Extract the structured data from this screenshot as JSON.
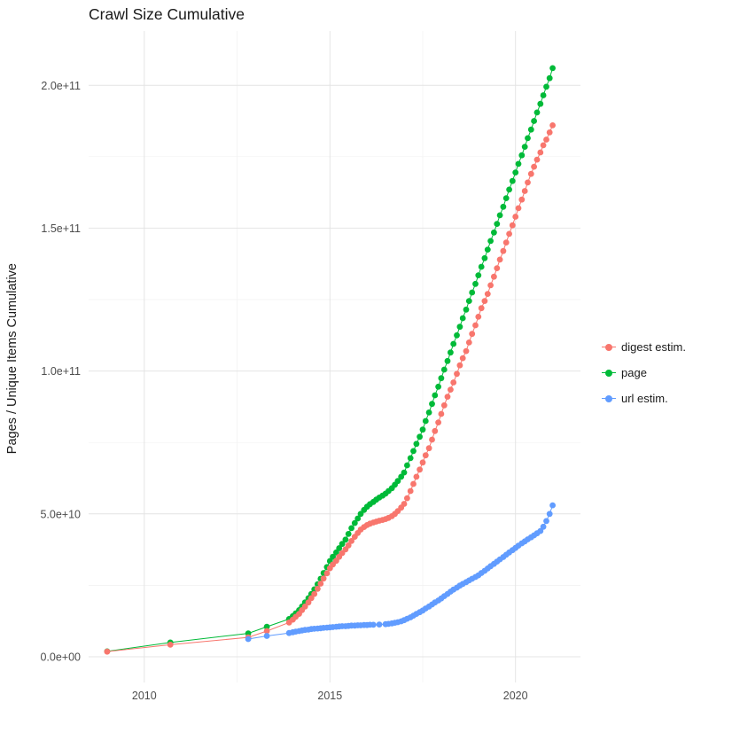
{
  "chart_data": {
    "type": "scatter",
    "title": "Crawl Size Cumulative",
    "xlabel": "",
    "ylabel": "Pages / Unique Items Cumulative",
    "value_unit": "point values in billions (1e9) of pages / unique items",
    "grid": true,
    "x_axis": {
      "domain": [
        2008.5,
        2021.75
      ],
      "ticks": [
        {
          "value": 2010,
          "label": "2010"
        },
        {
          "value": 2015,
          "label": "2015"
        },
        {
          "value": 2020,
          "label": "2020"
        }
      ],
      "minor": [
        2012.5,
        2017.5
      ]
    },
    "y_axis": {
      "domain_e9": [
        -9,
        219
      ],
      "ticks": [
        {
          "value_e9": 0,
          "label": "0.0e+00"
        },
        {
          "value_e9": 50,
          "label": "5.0e+10"
        },
        {
          "value_e9": 100,
          "label": "1.0e+11"
        },
        {
          "value_e9": 150,
          "label": "1.5e+11"
        },
        {
          "value_e9": 200,
          "label": "2.0e+11"
        }
      ],
      "minor_e9": [
        25,
        75,
        125,
        175
      ]
    },
    "legend": {
      "position": "right",
      "entries": [
        "digest estim.",
        "page",
        "url estim."
      ]
    },
    "style": {
      "background": "#FFFFFF",
      "major_grid_color": "#E4E4E4",
      "minor_grid_color": "#F1F1F1",
      "tick_label_color": "#4D4D4D",
      "text_color": "#1A1A1A"
    },
    "series": [
      {
        "id": "digest",
        "name": "digest estim.",
        "color": "#F8766D",
        "points": [
          [
            2009.0,
            1.8
          ],
          [
            2010.7,
            4.2
          ],
          [
            2012.8,
            6.8
          ],
          [
            2013.3,
            9.0
          ],
          [
            2013.9,
            12.0
          ],
          [
            2014.0,
            13.0
          ],
          [
            2014.08,
            14.0
          ],
          [
            2014.17,
            15.0
          ],
          [
            2014.25,
            16.3
          ],
          [
            2014.33,
            17.6
          ],
          [
            2014.42,
            19.0
          ],
          [
            2014.5,
            20.5
          ],
          [
            2014.58,
            22.0
          ],
          [
            2014.67,
            23.8
          ],
          [
            2014.75,
            25.6
          ],
          [
            2014.83,
            27.4
          ],
          [
            2014.92,
            29.2
          ],
          [
            2015.0,
            31.0
          ],
          [
            2015.08,
            32.3
          ],
          [
            2015.17,
            33.6
          ],
          [
            2015.25,
            35.0
          ],
          [
            2015.33,
            36.3
          ],
          [
            2015.42,
            37.6
          ],
          [
            2015.5,
            39.0
          ],
          [
            2015.58,
            40.5
          ],
          [
            2015.67,
            42.0
          ],
          [
            2015.75,
            43.3
          ],
          [
            2015.83,
            44.5
          ],
          [
            2015.92,
            45.4
          ],
          [
            2016.0,
            46.1
          ],
          [
            2016.08,
            46.6
          ],
          [
            2016.17,
            47.0
          ],
          [
            2016.25,
            47.3
          ],
          [
            2016.33,
            47.6
          ],
          [
            2016.42,
            47.9
          ],
          [
            2016.5,
            48.2
          ],
          [
            2016.58,
            48.6
          ],
          [
            2016.67,
            49.2
          ],
          [
            2016.75,
            50.0
          ],
          [
            2016.83,
            51.0
          ],
          [
            2016.92,
            52.2
          ],
          [
            2017.0,
            53.5
          ],
          [
            2017.08,
            55.5
          ],
          [
            2017.17,
            58.0
          ],
          [
            2017.25,
            60.5
          ],
          [
            2017.33,
            63.0
          ],
          [
            2017.42,
            65.5
          ],
          [
            2017.5,
            68.0
          ],
          [
            2017.58,
            70.5
          ],
          [
            2017.67,
            73.0
          ],
          [
            2017.75,
            76.0
          ],
          [
            2017.83,
            79.0
          ],
          [
            2017.92,
            82.0
          ],
          [
            2018.0,
            85.0
          ],
          [
            2018.08,
            88.0
          ],
          [
            2018.17,
            91.0
          ],
          [
            2018.25,
            93.5
          ],
          [
            2018.33,
            96.0
          ],
          [
            2018.42,
            99.0
          ],
          [
            2018.5,
            102.0
          ],
          [
            2018.58,
            104.5
          ],
          [
            2018.67,
            107.0
          ],
          [
            2018.75,
            110.0
          ],
          [
            2018.83,
            113.0
          ],
          [
            2018.92,
            116.0
          ],
          [
            2019.0,
            119.0
          ],
          [
            2019.08,
            122.0
          ],
          [
            2019.17,
            124.5
          ],
          [
            2019.25,
            127.0
          ],
          [
            2019.33,
            130.0
          ],
          [
            2019.42,
            133.0
          ],
          [
            2019.5,
            136.0
          ],
          [
            2019.58,
            139.0
          ],
          [
            2019.67,
            142.0
          ],
          [
            2019.75,
            145.0
          ],
          [
            2019.83,
            148.0
          ],
          [
            2019.92,
            151.0
          ],
          [
            2020.0,
            154.0
          ],
          [
            2020.08,
            157.0
          ],
          [
            2020.17,
            160.0
          ],
          [
            2020.25,
            163.0
          ],
          [
            2020.33,
            166.0
          ],
          [
            2020.42,
            169.0
          ],
          [
            2020.5,
            171.5
          ],
          [
            2020.58,
            174.0
          ],
          [
            2020.67,
            176.5
          ],
          [
            2020.75,
            179.0
          ],
          [
            2020.83,
            181.0
          ],
          [
            2020.92,
            183.5
          ],
          [
            2021.0,
            186.0
          ]
        ]
      },
      {
        "id": "page",
        "name": "page",
        "color": "#00BA38",
        "points": [
          [
            2009.0,
            1.9
          ],
          [
            2010.7,
            5.0
          ],
          [
            2012.8,
            8.2
          ],
          [
            2013.3,
            10.5
          ],
          [
            2013.9,
            13.2
          ],
          [
            2014.0,
            14.2
          ],
          [
            2014.08,
            15.2
          ],
          [
            2014.17,
            16.3
          ],
          [
            2014.25,
            17.6
          ],
          [
            2014.33,
            19.0
          ],
          [
            2014.42,
            20.5
          ],
          [
            2014.5,
            22.0
          ],
          [
            2014.58,
            23.6
          ],
          [
            2014.67,
            25.4
          ],
          [
            2014.75,
            27.3
          ],
          [
            2014.83,
            29.3
          ],
          [
            2014.92,
            31.4
          ],
          [
            2015.0,
            33.5
          ],
          [
            2015.08,
            35.0
          ],
          [
            2015.17,
            36.5
          ],
          [
            2015.25,
            38.0
          ],
          [
            2015.33,
            39.5
          ],
          [
            2015.42,
            41.0
          ],
          [
            2015.5,
            43.0
          ],
          [
            2015.58,
            45.0
          ],
          [
            2015.67,
            46.8
          ],
          [
            2015.75,
            48.4
          ],
          [
            2015.83,
            50.0
          ],
          [
            2015.92,
            51.4
          ],
          [
            2016.0,
            52.5
          ],
          [
            2016.08,
            53.4
          ],
          [
            2016.17,
            54.2
          ],
          [
            2016.25,
            55.0
          ],
          [
            2016.33,
            55.7
          ],
          [
            2016.42,
            56.4
          ],
          [
            2016.5,
            57.1
          ],
          [
            2016.58,
            58.0
          ],
          [
            2016.67,
            59.0
          ],
          [
            2016.75,
            60.2
          ],
          [
            2016.83,
            61.5
          ],
          [
            2016.92,
            63.0
          ],
          [
            2017.0,
            64.5
          ],
          [
            2017.08,
            67.0
          ],
          [
            2017.17,
            69.5
          ],
          [
            2017.25,
            72.0
          ],
          [
            2017.33,
            74.5
          ],
          [
            2017.42,
            77.0
          ],
          [
            2017.5,
            79.5
          ],
          [
            2017.58,
            82.5
          ],
          [
            2017.67,
            85.5
          ],
          [
            2017.75,
            88.5
          ],
          [
            2017.83,
            91.5
          ],
          [
            2017.92,
            94.5
          ],
          [
            2018.0,
            97.5
          ],
          [
            2018.08,
            100.5
          ],
          [
            2018.17,
            103.5
          ],
          [
            2018.25,
            106.5
          ],
          [
            2018.33,
            109.5
          ],
          [
            2018.42,
            112.5
          ],
          [
            2018.5,
            115.5
          ],
          [
            2018.58,
            118.5
          ],
          [
            2018.67,
            121.5
          ],
          [
            2018.75,
            124.5
          ],
          [
            2018.83,
            127.5
          ],
          [
            2018.92,
            130.5
          ],
          [
            2019.0,
            133.5
          ],
          [
            2019.08,
            136.5
          ],
          [
            2019.17,
            139.5
          ],
          [
            2019.25,
            142.5
          ],
          [
            2019.33,
            145.5
          ],
          [
            2019.42,
            148.5
          ],
          [
            2019.5,
            151.5
          ],
          [
            2019.58,
            154.5
          ],
          [
            2019.67,
            157.5
          ],
          [
            2019.75,
            160.5
          ],
          [
            2019.83,
            163.5
          ],
          [
            2019.92,
            166.5
          ],
          [
            2020.0,
            169.5
          ],
          [
            2020.08,
            172.5
          ],
          [
            2020.17,
            175.5
          ],
          [
            2020.25,
            178.5
          ],
          [
            2020.33,
            181.5
          ],
          [
            2020.42,
            184.5
          ],
          [
            2020.5,
            187.5
          ],
          [
            2020.58,
            190.5
          ],
          [
            2020.67,
            193.5
          ],
          [
            2020.75,
            196.5
          ],
          [
            2020.83,
            199.5
          ],
          [
            2020.92,
            202.5
          ],
          [
            2021.0,
            206.0
          ]
        ]
      },
      {
        "id": "url",
        "name": "url estim.",
        "color": "#619CFF",
        "points": [
          [
            2012.8,
            6.2
          ],
          [
            2013.3,
            7.3
          ],
          [
            2013.9,
            8.3
          ],
          [
            2014.0,
            8.6
          ],
          [
            2014.08,
            8.8
          ],
          [
            2014.17,
            9.0
          ],
          [
            2014.25,
            9.2
          ],
          [
            2014.33,
            9.4
          ],
          [
            2014.42,
            9.5
          ],
          [
            2014.5,
            9.7
          ],
          [
            2014.58,
            9.8
          ],
          [
            2014.67,
            9.9
          ],
          [
            2014.75,
            10.0
          ],
          [
            2014.83,
            10.1
          ],
          [
            2014.92,
            10.2
          ],
          [
            2015.0,
            10.3
          ],
          [
            2015.08,
            10.4
          ],
          [
            2015.17,
            10.5
          ],
          [
            2015.25,
            10.6
          ],
          [
            2015.33,
            10.7
          ],
          [
            2015.42,
            10.7
          ],
          [
            2015.5,
            10.8
          ],
          [
            2015.58,
            10.9
          ],
          [
            2015.67,
            10.9
          ],
          [
            2015.75,
            11.0
          ],
          [
            2015.83,
            11.0
          ],
          [
            2015.92,
            11.1
          ],
          [
            2016.0,
            11.1
          ],
          [
            2016.08,
            11.2
          ],
          [
            2016.17,
            11.2
          ],
          [
            2016.33,
            11.3
          ],
          [
            2016.5,
            11.4
          ],
          [
            2016.58,
            11.5
          ],
          [
            2016.67,
            11.7
          ],
          [
            2016.75,
            11.9
          ],
          [
            2016.83,
            12.1
          ],
          [
            2016.92,
            12.4
          ],
          [
            2017.0,
            12.8
          ],
          [
            2017.08,
            13.3
          ],
          [
            2017.17,
            13.8
          ],
          [
            2017.25,
            14.4
          ],
          [
            2017.33,
            15.0
          ],
          [
            2017.42,
            15.6
          ],
          [
            2017.5,
            16.2
          ],
          [
            2017.58,
            16.9
          ],
          [
            2017.67,
            17.6
          ],
          [
            2017.75,
            18.3
          ],
          [
            2017.83,
            19.0
          ],
          [
            2017.92,
            19.7
          ],
          [
            2018.0,
            20.4
          ],
          [
            2018.08,
            21.2
          ],
          [
            2018.17,
            22.0
          ],
          [
            2018.25,
            22.8
          ],
          [
            2018.33,
            23.5
          ],
          [
            2018.42,
            24.2
          ],
          [
            2018.5,
            24.9
          ],
          [
            2018.58,
            25.5
          ],
          [
            2018.67,
            26.1
          ],
          [
            2018.75,
            26.7
          ],
          [
            2018.83,
            27.3
          ],
          [
            2018.92,
            27.9
          ],
          [
            2019.0,
            28.5
          ],
          [
            2019.08,
            29.3
          ],
          [
            2019.17,
            30.1
          ],
          [
            2019.25,
            30.9
          ],
          [
            2019.33,
            31.7
          ],
          [
            2019.42,
            32.5
          ],
          [
            2019.5,
            33.3
          ],
          [
            2019.58,
            34.1
          ],
          [
            2019.67,
            34.9
          ],
          [
            2019.75,
            35.7
          ],
          [
            2019.83,
            36.5
          ],
          [
            2019.92,
            37.3
          ],
          [
            2020.0,
            38.1
          ],
          [
            2020.08,
            38.9
          ],
          [
            2020.17,
            39.7
          ],
          [
            2020.25,
            40.4
          ],
          [
            2020.33,
            41.1
          ],
          [
            2020.42,
            41.8
          ],
          [
            2020.5,
            42.5
          ],
          [
            2020.58,
            43.2
          ],
          [
            2020.67,
            44.0
          ],
          [
            2020.75,
            45.5
          ],
          [
            2020.83,
            47.5
          ],
          [
            2020.92,
            50.0
          ],
          [
            2021.0,
            53.0
          ]
        ]
      }
    ]
  }
}
